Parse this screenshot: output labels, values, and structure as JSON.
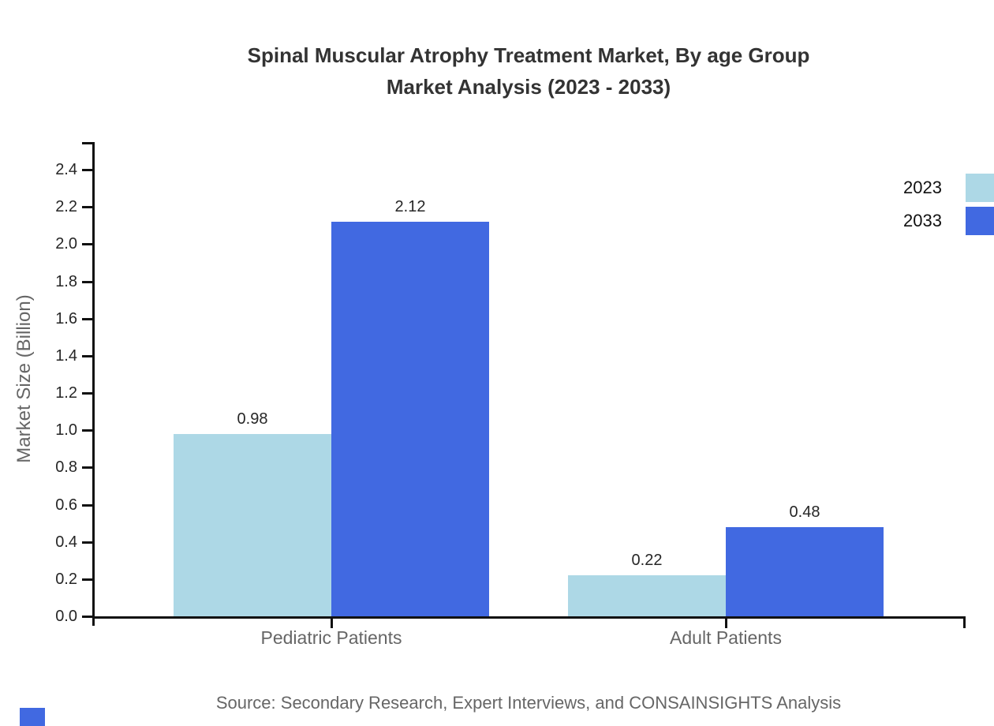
{
  "chart_data": {
    "type": "bar",
    "title_line1": "Spinal Muscular Atrophy Treatment Market, By age Group",
    "title_line2": "Market Analysis (2023 - 2033)",
    "ylabel": "Market Size (Billion)",
    "categories": [
      "Pediatric Patients",
      "Adult Patients"
    ],
    "series": [
      {
        "name": "2023",
        "color": "#ADD8E6",
        "values": [
          0.98,
          0.22
        ]
      },
      {
        "name": "2033",
        "color": "#4169E1",
        "values": [
          2.12,
          0.48
        ]
      }
    ],
    "yticks": [
      "0.0",
      "0.2",
      "0.4",
      "0.6",
      "0.8",
      "1.0",
      "1.2",
      "1.4",
      "1.6",
      "1.8",
      "2.0",
      "2.2",
      "2.4"
    ],
    "ylim": [
      0.0,
      2.55
    ],
    "grid": false,
    "legend_position": "top-right",
    "source": "Source: Secondary Research, Expert Interviews, and CONSAINSIGHTS Analysis"
  },
  "decorations": {
    "bottom_left_square_color": "#4169E1"
  }
}
